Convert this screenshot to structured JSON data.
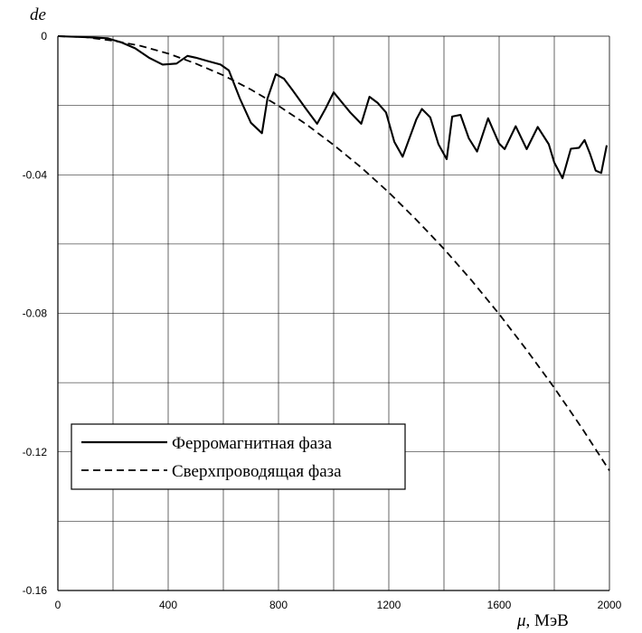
{
  "chart_data": {
    "type": "line",
    "xlabel_var": "μ",
    "xlabel_unit": ", МэВ",
    "ylabel": "de",
    "xlim": [
      0,
      2000
    ],
    "ylim": [
      -0.16,
      0
    ],
    "grid": true,
    "x_ticks": [
      0,
      400,
      800,
      1200,
      1600,
      2000
    ],
    "x_tick_labels": [
      "0",
      "400",
      "800",
      "1200",
      "1600",
      "2000"
    ],
    "y_ticks": [
      0,
      -0.04,
      -0.08,
      -0.12,
      -0.16
    ],
    "y_tick_labels": [
      "0",
      "-0.04",
      "-0.08",
      "-0.12",
      "-0.16"
    ],
    "legend_position": "bottom-left",
    "series": [
      {
        "name": "Ферромагнитная фаза",
        "style": "solid",
        "color": "#000000",
        "x": [
          0,
          100,
          180,
          230,
          280,
          330,
          380,
          430,
          470,
          500,
          540,
          590,
          620,
          660,
          700,
          740,
          760,
          790,
          820,
          850,
          900,
          940,
          970,
          1000,
          1060,
          1100,
          1130,
          1160,
          1190,
          1220,
          1250,
          1300,
          1320,
          1350,
          1380,
          1410,
          1430,
          1460,
          1490,
          1520,
          1560,
          1600,
          1620,
          1660,
          1700,
          1740,
          1780,
          1800,
          1830,
          1860,
          1890,
          1910,
          1930,
          1950,
          1970,
          1990
        ],
        "y": [
          0,
          -0.0003,
          -0.0006,
          -0.0018,
          -0.0035,
          -0.0062,
          -0.0082,
          -0.0079,
          -0.0057,
          -0.0062,
          -0.0071,
          -0.0082,
          -0.0099,
          -0.018,
          -0.025,
          -0.028,
          -0.018,
          -0.011,
          -0.0123,
          -0.0155,
          -0.021,
          -0.0253,
          -0.021,
          -0.0162,
          -0.022,
          -0.0253,
          -0.0175,
          -0.0193,
          -0.022,
          -0.0305,
          -0.0348,
          -0.024,
          -0.021,
          -0.0234,
          -0.0312,
          -0.0355,
          -0.0232,
          -0.0227,
          -0.0295,
          -0.0333,
          -0.0237,
          -0.031,
          -0.0326,
          -0.026,
          -0.0326,
          -0.0262,
          -0.0312,
          -0.0365,
          -0.041,
          -0.0325,
          -0.0322,
          -0.03,
          -0.034,
          -0.0388,
          -0.0395,
          -0.0315
        ]
      },
      {
        "name": "Сверхпроводящая фаза",
        "style": "dashed",
        "color": "#000000",
        "x": [
          0,
          100,
          200,
          300,
          400,
          500,
          600,
          700,
          800,
          900,
          1000,
          1100,
          1200,
          1300,
          1400,
          1500,
          1600,
          1700,
          1800,
          1900,
          2000
        ],
        "y": [
          0,
          -0.0003,
          -0.0013,
          -0.0028,
          -0.005,
          -0.0079,
          -0.0113,
          -0.0154,
          -0.0201,
          -0.0254,
          -0.0314,
          -0.0379,
          -0.0451,
          -0.053,
          -0.0614,
          -0.0705,
          -0.0802,
          -0.0906,
          -0.1015,
          -0.1131,
          -0.1254
        ]
      }
    ]
  }
}
